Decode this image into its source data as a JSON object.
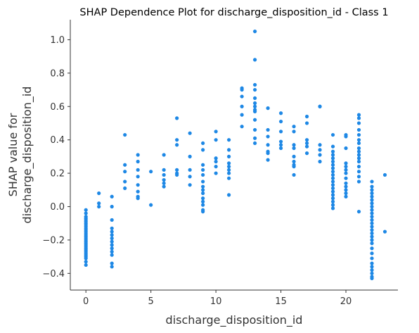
{
  "chart_data": {
    "type": "scatter",
    "title": "SHAP Dependence Plot for discharge_disposition_id - Class 1",
    "xlabel": "discharge_disposition_id",
    "ylabel": [
      "SHAP value for",
      "discharge_disposition_id"
    ],
    "xlim": [
      -1.2,
      24.0
    ],
    "ylim": [
      -0.5,
      1.12
    ],
    "xticks": [
      0,
      5,
      10,
      15,
      20
    ],
    "xtick_labels": [
      "0",
      "5",
      "10",
      "15",
      "20"
    ],
    "yticks": [
      -0.4,
      -0.2,
      0.0,
      0.2,
      0.4,
      0.6,
      0.8,
      1.0
    ],
    "ytick_labels": [
      "−0.4",
      "−0.2",
      "0.0",
      "0.2",
      "0.4",
      "0.6",
      "0.8",
      "1.0"
    ],
    "grid": false,
    "point_color": "#1E88E5",
    "points": [
      {
        "x": 0,
        "y": [
          -0.02,
          -0.04,
          -0.06,
          -0.07,
          -0.08,
          -0.09,
          -0.1,
          -0.11,
          -0.12,
          -0.13,
          -0.14,
          -0.15,
          -0.16,
          -0.17,
          -0.18,
          -0.19,
          -0.2,
          -0.21,
          -0.22,
          -0.23,
          -0.24,
          -0.25,
          -0.26,
          -0.27,
          -0.28,
          -0.29,
          -0.3,
          -0.31,
          -0.33,
          -0.35
        ]
      },
      {
        "x": 1,
        "y": [
          0.08,
          0.02,
          0.0
        ]
      },
      {
        "x": 2,
        "y": [
          0.06,
          0.0,
          -0.08,
          -0.13,
          -0.15,
          -0.17,
          -0.19,
          -0.21,
          -0.23,
          -0.25,
          -0.27,
          -0.29,
          -0.34,
          -0.36
        ]
      },
      {
        "x": 3,
        "y": [
          0.43,
          0.25,
          0.21,
          0.15,
          0.11
        ]
      },
      {
        "x": 4,
        "y": [
          0.31,
          0.27,
          0.22,
          0.18,
          0.13,
          0.09,
          0.06,
          0.05
        ]
      },
      {
        "x": 5,
        "y": [
          0.21,
          0.01
        ]
      },
      {
        "x": 6,
        "y": [
          0.31,
          0.22,
          0.19,
          0.16,
          0.14,
          0.12
        ]
      },
      {
        "x": 7,
        "y": [
          0.53,
          0.4,
          0.37,
          0.22,
          0.2,
          0.19
        ]
      },
      {
        "x": 8,
        "y": [
          0.44,
          0.3,
          0.22,
          0.18,
          0.13
        ]
      },
      {
        "x": 9,
        "y": [
          0.38,
          0.34,
          0.25,
          0.22,
          0.19,
          0.15,
          0.12,
          0.1,
          0.08,
          0.05,
          0.03,
          0.01,
          -0.02,
          -0.03
        ]
      },
      {
        "x": 10,
        "y": [
          0.45,
          0.4,
          0.29,
          0.27,
          0.24,
          0.2
        ]
      },
      {
        "x": 11,
        "y": [
          0.4,
          0.34,
          0.3,
          0.26,
          0.24,
          0.22,
          0.2,
          0.17,
          0.07
        ]
      },
      {
        "x": 12,
        "y": [
          0.71,
          0.7,
          0.66,
          0.6,
          0.55,
          0.48
        ]
      },
      {
        "x": 13,
        "y": [
          1.05,
          0.88,
          0.73,
          0.7,
          0.65,
          0.62,
          0.6,
          0.58,
          0.57,
          0.52,
          0.46,
          0.41,
          0.38
        ]
      },
      {
        "x": 14,
        "y": [
          0.59,
          0.46,
          0.42,
          0.37,
          0.33,
          0.32,
          0.28
        ]
      },
      {
        "x": 15,
        "y": [
          0.56,
          0.51,
          0.45,
          0.39,
          0.37,
          0.35
        ]
      },
      {
        "x": 16,
        "y": [
          0.48,
          0.45,
          0.37,
          0.35,
          0.3,
          0.27,
          0.25,
          0.24,
          0.19
        ]
      },
      {
        "x": 17,
        "y": [
          0.54,
          0.5,
          0.4,
          0.38,
          0.36,
          0.32
        ]
      },
      {
        "x": 18,
        "y": [
          0.6,
          0.6,
          0.37,
          0.34,
          0.31,
          0.27
        ]
      },
      {
        "x": 19,
        "y": [
          0.43,
          0.36,
          0.33,
          0.31,
          0.29,
          0.27,
          0.25,
          0.23,
          0.21,
          0.19,
          0.17,
          0.15,
          0.13,
          0.11,
          0.09,
          0.07,
          0.05,
          0.03,
          0.01,
          -0.01
        ]
      },
      {
        "x": 20,
        "y": [
          0.43,
          0.42,
          0.35,
          0.26,
          0.24,
          0.22,
          0.2,
          0.17,
          0.14,
          0.12,
          0.1,
          0.08,
          0.06
        ]
      },
      {
        "x": 21,
        "y": [
          0.55,
          0.53,
          0.5,
          0.46,
          0.43,
          0.4,
          0.38,
          0.35,
          0.33,
          0.31,
          0.29,
          0.27,
          0.24,
          0.21,
          0.18,
          0.15,
          -0.03
        ]
      },
      {
        "x": 22,
        "y": [
          0.15,
          0.12,
          0.1,
          0.08,
          0.06,
          0.04,
          0.02,
          0.0,
          -0.02,
          -0.04,
          -0.06,
          -0.08,
          -0.1,
          -0.12,
          -0.14,
          -0.16,
          -0.18,
          -0.2,
          -0.22,
          -0.25,
          -0.28,
          -0.31,
          -0.34,
          -0.36,
          -0.38,
          -0.4,
          -0.42,
          -0.43
        ]
      },
      {
        "x": 23,
        "y": [
          0.19,
          -0.15
        ]
      }
    ]
  }
}
